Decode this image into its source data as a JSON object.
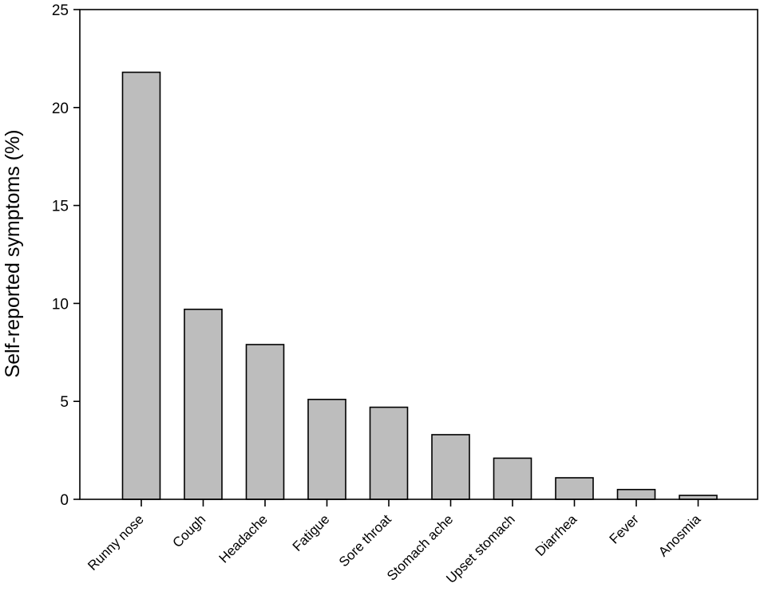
{
  "chart_data": {
    "type": "bar",
    "title": "",
    "xlabel": "",
    "ylabel": "Self-reported symptoms (%)",
    "ylim": [
      0,
      25
    ],
    "yticks": [
      0,
      5,
      10,
      15,
      20,
      25
    ],
    "grid": false,
    "legend": "none",
    "bar_color": "#bdbdbd",
    "categories": [
      "Runny nose",
      "Cough",
      "Headache",
      "Fatigue",
      "Sore throat",
      "Stomach ache",
      "Upset stomach",
      "Diarrhea",
      "Fever",
      "Anosmia"
    ],
    "values": [
      21.8,
      9.7,
      7.9,
      5.1,
      4.7,
      3.3,
      2.1,
      1.1,
      0.5,
      0.2
    ]
  }
}
